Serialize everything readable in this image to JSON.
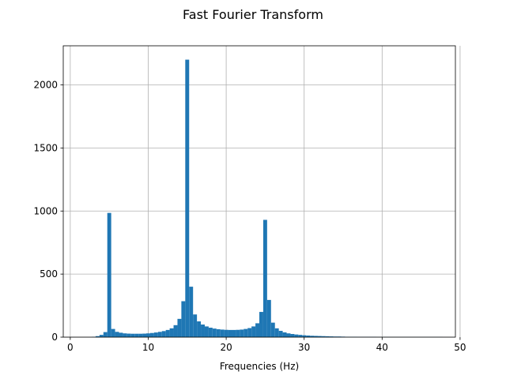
{
  "chart_data": {
    "type": "bar",
    "title": "Fast Fourier Transform",
    "xlabel": "Frequencies (Hz)",
    "ylabel": "",
    "xlim": [
      -0.9,
      49.4
    ],
    "ylim": [
      0,
      2310
    ],
    "xticks": [
      0,
      10,
      20,
      30,
      40,
      50
    ],
    "yticks": [
      0,
      500,
      1000,
      1500,
      2000
    ],
    "grid": true,
    "bar_color": "#1f77b4",
    "bar_width": 0.5,
    "bars": [
      {
        "x": 3.0,
        "y": 3
      },
      {
        "x": 3.5,
        "y": 8
      },
      {
        "x": 4.0,
        "y": 18
      },
      {
        "x": 4.5,
        "y": 40
      },
      {
        "x": 5.0,
        "y": 985
      },
      {
        "x": 5.5,
        "y": 65
      },
      {
        "x": 6.0,
        "y": 42
      },
      {
        "x": 6.5,
        "y": 35
      },
      {
        "x": 7.0,
        "y": 30
      },
      {
        "x": 7.5,
        "y": 28
      },
      {
        "x": 8.0,
        "y": 27
      },
      {
        "x": 8.5,
        "y": 27
      },
      {
        "x": 9.0,
        "y": 27
      },
      {
        "x": 9.5,
        "y": 28
      },
      {
        "x": 10.0,
        "y": 30
      },
      {
        "x": 10.5,
        "y": 33
      },
      {
        "x": 11.0,
        "y": 37
      },
      {
        "x": 11.5,
        "y": 42
      },
      {
        "x": 12.0,
        "y": 48
      },
      {
        "x": 12.5,
        "y": 57
      },
      {
        "x": 13.0,
        "y": 70
      },
      {
        "x": 13.5,
        "y": 95
      },
      {
        "x": 14.0,
        "y": 145
      },
      {
        "x": 14.5,
        "y": 285
      },
      {
        "x": 15.0,
        "y": 2200
      },
      {
        "x": 15.5,
        "y": 400
      },
      {
        "x": 16.0,
        "y": 180
      },
      {
        "x": 16.5,
        "y": 125
      },
      {
        "x": 17.0,
        "y": 100
      },
      {
        "x": 17.5,
        "y": 85
      },
      {
        "x": 18.0,
        "y": 75
      },
      {
        "x": 18.5,
        "y": 68
      },
      {
        "x": 19.0,
        "y": 63
      },
      {
        "x": 19.5,
        "y": 60
      },
      {
        "x": 20.0,
        "y": 58
      },
      {
        "x": 20.5,
        "y": 57
      },
      {
        "x": 21.0,
        "y": 57
      },
      {
        "x": 21.5,
        "y": 58
      },
      {
        "x": 22.0,
        "y": 60
      },
      {
        "x": 22.5,
        "y": 65
      },
      {
        "x": 23.0,
        "y": 72
      },
      {
        "x": 23.5,
        "y": 85
      },
      {
        "x": 24.0,
        "y": 110
      },
      {
        "x": 24.5,
        "y": 200
      },
      {
        "x": 25.0,
        "y": 930
      },
      {
        "x": 25.5,
        "y": 295
      },
      {
        "x": 26.0,
        "y": 115
      },
      {
        "x": 26.5,
        "y": 70
      },
      {
        "x": 27.0,
        "y": 50
      },
      {
        "x": 27.5,
        "y": 38
      },
      {
        "x": 28.0,
        "y": 30
      },
      {
        "x": 28.5,
        "y": 25
      },
      {
        "x": 29.0,
        "y": 21
      },
      {
        "x": 29.5,
        "y": 18
      },
      {
        "x": 30.0,
        "y": 15
      },
      {
        "x": 30.5,
        "y": 13
      },
      {
        "x": 31.0,
        "y": 11
      },
      {
        "x": 31.5,
        "y": 10
      },
      {
        "x": 32.0,
        "y": 9
      },
      {
        "x": 32.5,
        "y": 8
      },
      {
        "x": 33.0,
        "y": 7
      },
      {
        "x": 33.5,
        "y": 6
      },
      {
        "x": 34.0,
        "y": 5
      },
      {
        "x": 34.5,
        "y": 5
      },
      {
        "x": 35.0,
        "y": 4
      },
      {
        "x": 35.5,
        "y": 3
      },
      {
        "x": 36.0,
        "y": 3
      },
      {
        "x": 36.5,
        "y": 3
      },
      {
        "x": 37.0,
        "y": 2
      },
      {
        "x": 37.5,
        "y": 2
      },
      {
        "x": 38.0,
        "y": 2
      },
      {
        "x": 38.5,
        "y": 2
      },
      {
        "x": 39.0,
        "y": 2
      },
      {
        "x": 39.5,
        "y": 1
      },
      {
        "x": 40.0,
        "y": 1
      },
      {
        "x": 40.5,
        "y": 1
      },
      {
        "x": 41.0,
        "y": 1
      },
      {
        "x": 41.5,
        "y": 1
      },
      {
        "x": 42.0,
        "y": 1
      },
      {
        "x": 42.5,
        "y": 1
      },
      {
        "x": 43.0,
        "y": 1
      },
      {
        "x": 43.5,
        "y": 1
      },
      {
        "x": 44.0,
        "y": 1
      },
      {
        "x": 44.5,
        "y": 1
      },
      {
        "x": 45.0,
        "y": 1
      },
      {
        "x": 45.5,
        "y": 1
      },
      {
        "x": 46.0,
        "y": 1
      },
      {
        "x": 46.5,
        "y": 1
      },
      {
        "x": 47.0,
        "y": 1
      },
      {
        "x": 47.5,
        "y": 1
      }
    ]
  }
}
